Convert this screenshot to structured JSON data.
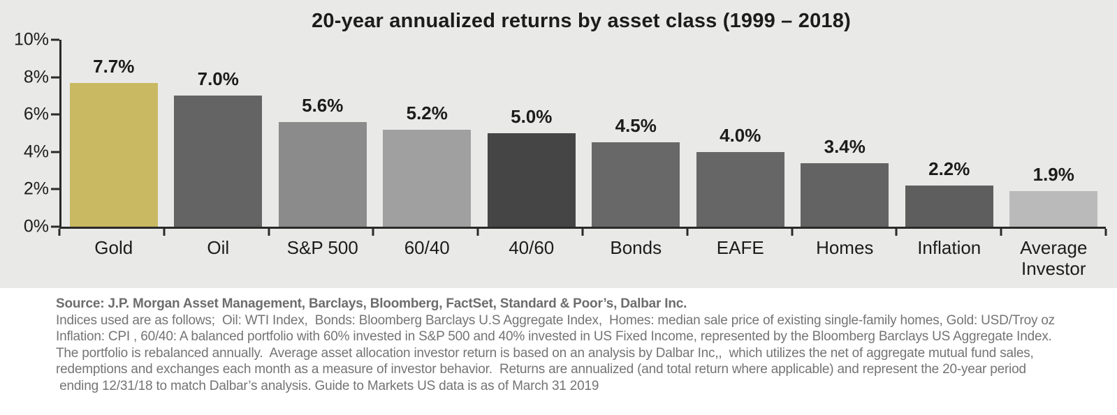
{
  "chart_data": {
    "type": "bar",
    "title": "20-year annualized returns by asset class (1999 – 2018)",
    "categories": [
      "Gold",
      "Oil",
      "S&P 500",
      "60/40",
      "40/60",
      "Bonds",
      "EAFE",
      "Homes",
      "Inflation",
      "Average Investor"
    ],
    "values": [
      7.7,
      7.0,
      5.6,
      5.2,
      5.0,
      4.5,
      4.0,
      3.4,
      2.2,
      1.9
    ],
    "value_labels": [
      "7.7%",
      "7.0%",
      "5.6%",
      "5.2%",
      "5.0%",
      "4.5%",
      "4.0%",
      "3.4%",
      "2.2%",
      "1.9%"
    ],
    "bar_colors": [
      "#c9b962",
      "#646464",
      "#8b8b8b",
      "#a0a0a0",
      "#454545",
      "#686868",
      "#666666",
      "#636363",
      "#5e5e5e",
      "#bababa"
    ],
    "ylim": [
      0,
      10
    ],
    "y_ticks": [
      "10%",
      "8%",
      "6%",
      "4%",
      "2%",
      "0%"
    ],
    "xlabel": "",
    "ylabel": "",
    "grid": "off",
    "legend": "none",
    "background_color": "#e9e9e7",
    "axis_color": "#2a2a2a"
  },
  "footer": {
    "lines": [
      "Source: J.P. Morgan Asset Management, Barclays, Bloomberg, FactSet, Standard & Poor’s, Dalbar Inc.",
      "Indices used are as follows;  Oil: WTI Index,  Bonds: Bloomberg Barclays U.S Aggregate Index,  Homes: median sale price of existing single-family homes, Gold: USD/Troy oz",
      "Inflation: CPI , 60/40: A balanced portfolio with 60% invested in S&P 500 and 40% invested in US Fixed Income, represented by the Bloomberg Barclays US Aggregate Index.",
      "The portfolio is rebalanced annually.  Average asset allocation investor return is based on an analysis by Dalbar Inc,,  which utilizes the net of aggregate mutual fund sales,",
      "redemptions and exchanges each month as a measure of investor behavior.  Returns are annualized (and total return where applicable) and represent the 20-year period",
      " ending 12/31/18 to match Dalbar’s analysis. Guide to Markets US data is as of March 31 2019"
    ]
  }
}
